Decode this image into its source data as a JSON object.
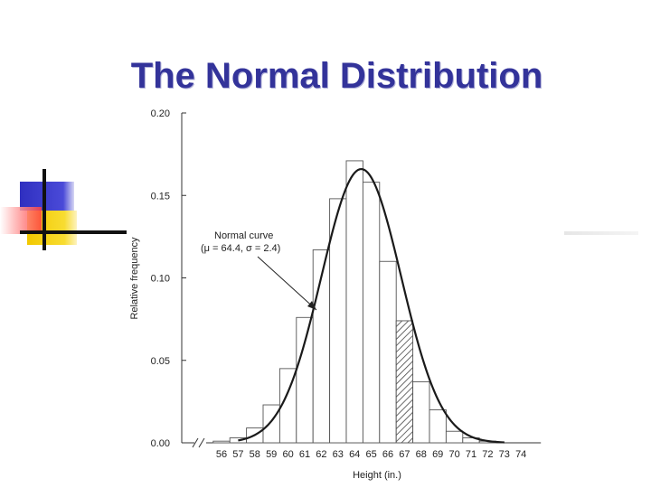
{
  "slide": {
    "title": "The Normal Distribution"
  },
  "colors": {
    "title": "#33339a",
    "bar_outline": "#555555",
    "curve": "#1a1a1a",
    "hatch": "#444444",
    "decor_blue": "#3535c8",
    "decor_yellow": "#f4d000",
    "decor_red": "#ff5050"
  },
  "chart_data": {
    "type": "bar",
    "xlabel": "Height (in.)",
    "ylabel": "Relative frequency",
    "ylim": [
      0,
      0.2
    ],
    "y_ticks": [
      "0.00",
      "0.05",
      "0.10",
      "0.15",
      "0.20"
    ],
    "y_tick_values": [
      0,
      0.05,
      0.1,
      0.15,
      0.2
    ],
    "categories": [
      "56",
      "57",
      "58",
      "59",
      "60",
      "61",
      "62",
      "63",
      "64",
      "65",
      "66",
      "67",
      "68",
      "69",
      "70",
      "71",
      "72",
      "73",
      "74"
    ],
    "values": [
      0.001,
      0.003,
      0.009,
      0.023,
      0.045,
      0.076,
      0.117,
      0.148,
      0.171,
      0.158,
      0.11,
      0.074,
      0.037,
      0.02,
      0.007,
      0.003,
      0.001,
      0.0,
      0.0
    ],
    "highlighted_bar": "67",
    "x_axis_break": true,
    "curve": {
      "mu": 64.4,
      "sigma": 2.4,
      "annotation_line1": "Normal curve",
      "annotation_line2": "(μ = 64.4, σ = 2.4)"
    },
    "grid": false,
    "legend": "none"
  }
}
